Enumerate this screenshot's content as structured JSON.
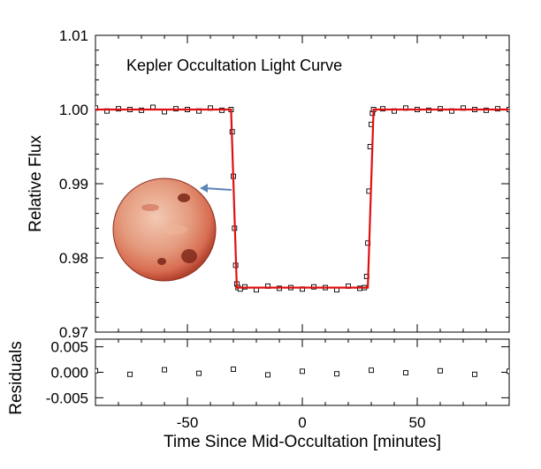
{
  "chart_data": [
    {
      "type": "scatter",
      "title": "Kepler Occultation Light Curve",
      "xlabel": "",
      "ylabel": "Relative Flux",
      "xlim": [
        -90,
        90
      ],
      "ylim": [
        0.97,
        1.01
      ],
      "yticks": [
        0.97,
        0.98,
        0.99,
        1.0,
        1.01
      ],
      "ytick_labels": [
        "0.97",
        "0.98",
        "0.99",
        "1.00",
        "1.01"
      ],
      "xticks": [
        -50,
        0,
        50
      ],
      "grid": false,
      "series": [
        {
          "kind": "points",
          "marker": "open-square",
          "x": [
            -90,
            -85,
            -80,
            -75,
            -70,
            -65,
            -60,
            -55,
            -50,
            -45,
            -40,
            -35,
            -31,
            -30.5,
            -30,
            -29.5,
            -29,
            -28.5,
            -28,
            -27,
            -25,
            -20,
            -15,
            -10,
            -5,
            0,
            5,
            10,
            15,
            20,
            25,
            27,
            28,
            28.5,
            29,
            29.5,
            30,
            30.5,
            31,
            35,
            40,
            45,
            50,
            55,
            60,
            65,
            70,
            75,
            80,
            85,
            90
          ],
          "y": [
            1.0002,
            0.9998,
            1.0001,
            1.0,
            0.9999,
            1.0003,
            0.9997,
            1.0001,
            1.0,
            0.9998,
            1.0002,
            0.9999,
            1.0,
            0.997,
            0.991,
            0.984,
            0.979,
            0.9765,
            0.976,
            0.9758,
            0.9761,
            0.9757,
            0.9762,
            0.9759,
            0.976,
            0.9758,
            0.9761,
            0.976,
            0.9757,
            0.9762,
            0.9759,
            0.976,
            0.9775,
            0.982,
            0.989,
            0.995,
            0.998,
            0.9995,
            1.0,
            1.0001,
            0.9998,
            1.0002,
            1.0,
            0.9999,
            1.0001,
            0.9998,
            1.0002,
            1.0,
            0.9999,
            1.0001,
            1.0
          ]
        },
        {
          "kind": "model-line",
          "color": "#e01010",
          "x": [
            -90,
            -31,
            -28.5,
            28.5,
            31,
            90
          ],
          "y": [
            1.0,
            1.0,
            0.976,
            0.976,
            1.0,
            1.0
          ]
        }
      ]
    },
    {
      "type": "scatter",
      "xlabel": "Time Since Mid-Occultation [minutes]",
      "ylabel": "Residuals",
      "xlim": [
        -90,
        90
      ],
      "ylim": [
        -0.0065,
        0.0065
      ],
      "yticks": [
        -0.005,
        0.0,
        0.005
      ],
      "ytick_labels": [
        "-0.005",
        "0.000",
        "0.005"
      ],
      "xticks": [
        -50,
        0,
        50
      ],
      "xtick_labels": [
        "-50",
        "0",
        "50"
      ],
      "grid": false,
      "series": [
        {
          "kind": "points",
          "marker": "open-square",
          "x": [
            -90,
            -75,
            -60,
            -45,
            -30,
            -15,
            0,
            15,
            30,
            45,
            60,
            75,
            90
          ],
          "y": [
            0.0003,
            -0.0004,
            0.0005,
            -0.0002,
            0.0006,
            -0.0005,
            0.0002,
            -0.0003,
            0.0004,
            -0.0001,
            0.0003,
            -0.0004,
            0.0002
          ]
        }
      ]
    }
  ],
  "colors": {
    "model_line": "#e01010",
    "planet_base": "#e58a6e"
  },
  "icons": {
    "inset_planet": "planet-illustration-icon",
    "inset_arrow": "arrow-left-icon"
  }
}
